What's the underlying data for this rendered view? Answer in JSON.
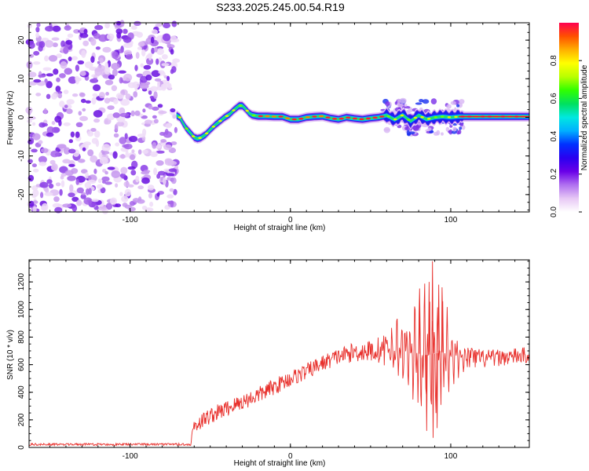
{
  "chart_data": [
    {
      "type": "heatmap",
      "title": "S233.2025.245.00.54.R19",
      "xlabel": "Height of straight line (km)",
      "ylabel": "Frequency (Hz)",
      "xlim": [
        -163,
        149
      ],
      "ylim": [
        -24.5,
        24.5
      ],
      "x_ticks": [
        "-100",
        "0",
        "100"
      ],
      "x_tick_values": [
        -100,
        0,
        100
      ],
      "y_ticks": [
        "-20",
        "-10",
        "0",
        "10",
        "20"
      ],
      "y_tick_values": [
        -20,
        -10,
        0,
        10,
        20
      ],
      "noise_region_x": [
        -163,
        -71
      ],
      "ridge_trace": {
        "x": [
          -71,
          -69,
          -67,
          -65,
          -62,
          -60,
          -58,
          -56,
          -53,
          -50,
          -47,
          -44,
          -41,
          -38,
          -35,
          -32,
          -30,
          -28,
          -26,
          -24,
          -20,
          -15,
          -10,
          -5,
          0,
          5,
          10,
          15,
          20,
          25,
          30,
          35,
          40,
          45,
          50,
          55,
          60,
          65,
          70,
          75,
          80,
          85,
          90,
          95,
          100,
          105,
          110,
          120,
          130,
          140,
          149
        ],
        "y": [
          0.5,
          0.0,
          -1.5,
          -2.8,
          -4.2,
          -5.2,
          -5.5,
          -5.3,
          -4.5,
          -3.2,
          -2.0,
          -1.0,
          0.0,
          0.8,
          2.0,
          3.0,
          3.0,
          2.2,
          1.2,
          0.6,
          0.3,
          0.3,
          0.2,
          0.2,
          -0.5,
          -0.5,
          0.0,
          0.2,
          0.3,
          -0.2,
          -0.5,
          0.0,
          -0.3,
          -0.5,
          -0.2,
          0.0,
          0.5,
          -0.6,
          0.6,
          -1.0,
          0.5,
          -0.5,
          0.0,
          0.2,
          0.0,
          0.2,
          0.2,
          0.2,
          0.2,
          0.2,
          0.2
        ]
      },
      "colorbar": {
        "label": "Normalized spectral amplitude",
        "range": [
          0.0,
          1.0
        ],
        "ticks": [
          "0.0",
          "0.2",
          "0.4",
          "0.6",
          "0.8"
        ],
        "tick_values": [
          0.0,
          0.2,
          0.4,
          0.6,
          0.8
        ],
        "colors": [
          "#ffffff",
          "#e7c8f5",
          "#b070f0",
          "#6a00e8",
          "#2a00f0",
          "#0030ff",
          "#00b0ff",
          "#00e8e0",
          "#00e060",
          "#30ff00",
          "#b8ff00",
          "#ffff00",
          "#ffb000",
          "#ff5000",
          "#ff0050"
        ]
      }
    },
    {
      "type": "line",
      "title": "",
      "xlabel": "Height of straight line (km)",
      "ylabel": "SNR (10 * v/v)",
      "xlim": [
        -163,
        149
      ],
      "ylim": [
        0,
        1360
      ],
      "x_ticks": [
        "-100",
        "0",
        "100"
      ],
      "x_tick_values": [
        -100,
        0,
        100
      ],
      "y_ticks": [
        "0",
        "200",
        "400",
        "600",
        "800",
        "1000",
        "1200"
      ],
      "y_tick_values": [
        0,
        200,
        400,
        600,
        800,
        1000,
        1200
      ],
      "series": [
        {
          "name": "SNR",
          "color": "#e8302c",
          "envelope_x": [
            -163,
            -62,
            -61,
            -50,
            -40,
            -30,
            -20,
            -10,
            0,
            10,
            20,
            30,
            40,
            50,
            60,
            65,
            70,
            75,
            80,
            85,
            90,
            95,
            100,
            105,
            110,
            120,
            130,
            140,
            149
          ],
          "envelope_mean": [
            22,
            22,
            150,
            230,
            280,
            330,
            380,
            440,
            500,
            550,
            610,
            660,
            690,
            700,
            710,
            700,
            700,
            690,
            680,
            670,
            680,
            690,
            680,
            660,
            650,
            640,
            650,
            660,
            670
          ],
          "envelope_spread": [
            8,
            8,
            60,
            60,
            60,
            60,
            60,
            60,
            60,
            60,
            60,
            60,
            70,
            80,
            120,
            220,
            320,
            420,
            500,
            560,
            520,
            420,
            260,
            140,
            90,
            70,
            60,
            60,
            60
          ],
          "peak_max": 1350,
          "peak_min": 60
        }
      ]
    }
  ]
}
